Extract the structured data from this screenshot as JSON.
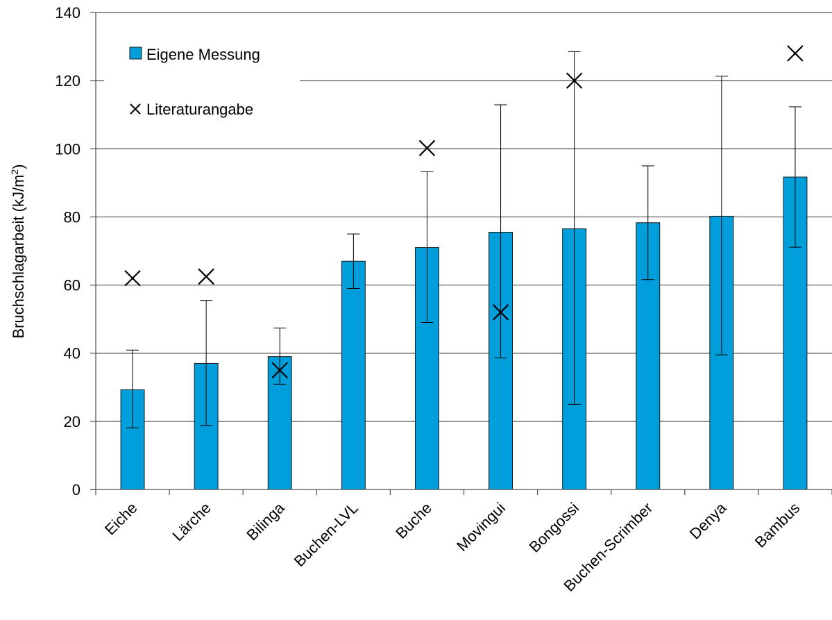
{
  "chart_data": {
    "type": "bar",
    "categories": [
      "Eiche",
      "Lärche",
      "Bilinga",
      "Buchen-LVL",
      "Buche",
      "Movingui",
      "Bongossi",
      "Buchen-Scrimber",
      "Denya",
      "Bambus"
    ],
    "series": [
      {
        "name": "Eigene Messung",
        "values": [
          29.3,
          37.0,
          39.0,
          67.0,
          71.0,
          75.5,
          76.5,
          78.3,
          80.2,
          91.7
        ],
        "error_low": [
          18.1,
          18.8,
          30.9,
          59.0,
          49.0,
          38.6,
          25.0,
          61.6,
          39.5,
          71.1
        ],
        "error_high": [
          40.9,
          55.5,
          47.4,
          75.0,
          93.3,
          112.9,
          128.5,
          95.0,
          121.3,
          112.3
        ]
      },
      {
        "name": "Literaturangabe",
        "marker": "x",
        "values": [
          62.0,
          62.5,
          35.0,
          null,
          100.2,
          52.0,
          120.0,
          null,
          null,
          128.0
        ]
      }
    ],
    "ylabel": "Bruchschlagarbeit (kJ/m²)",
    "ylabel_main": "Bruchschlagarbeit (kJ/m",
    "ylabel_sup": "2",
    "ylabel_close": ")",
    "xlabel": "",
    "ylim": [
      0,
      140
    ],
    "yticks": [
      0,
      20,
      40,
      60,
      80,
      100,
      120,
      140
    ],
    "grid": true,
    "legend_position": "top-left"
  },
  "colors": {
    "bar": "#009fdb",
    "bar_stroke": "#1a1a1a",
    "grid": "#4d4d4d",
    "marker": "#000000"
  }
}
